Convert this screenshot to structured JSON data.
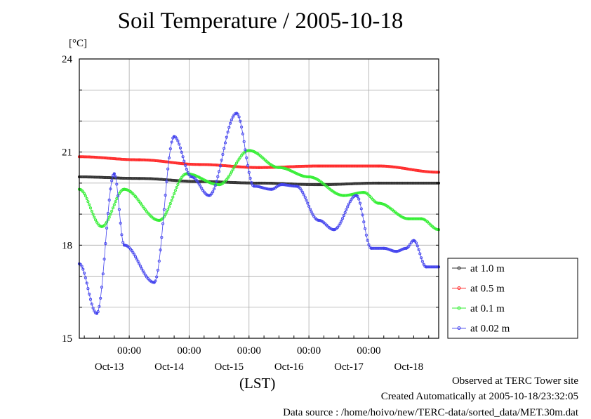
{
  "title": "Soil Temperature / 2005-10-18",
  "unit": "[°C]",
  "xlabel": "(LST)",
  "footer": {
    "observed": "Observed at TERC Tower site",
    "created": "Created Automatically at 2005-10-18/23:32:05",
    "source": "Data source : /home/hoivo/new/TERC-data/sorted_data/MET.30m.dat"
  },
  "chart_data": {
    "type": "line",
    "title": "Soil Temperature / 2005-10-18",
    "ylabel": "[°C]",
    "xlabel": "(LST)",
    "ylim": [
      15,
      24
    ],
    "xlim": [
      0,
      144
    ],
    "yticks": [
      15,
      18,
      21,
      24
    ],
    "xtick_positions": [
      20,
      44,
      68,
      92,
      116
    ],
    "xtick_labels": [
      "00:00",
      "00:00",
      "00:00",
      "00:00",
      "00:00"
    ],
    "date_positions": [
      12,
      36,
      60,
      84,
      108,
      132
    ],
    "date_labels": [
      "Oct-13",
      "Oct-14",
      "Oct-15",
      "Oct-16",
      "Oct-17",
      "Oct-18"
    ],
    "grid": true,
    "legend_position": "right",
    "series": [
      {
        "name": "at 1.0 m",
        "color": "#333333",
        "x": [
          0,
          24,
          48,
          72,
          96,
          120,
          144
        ],
        "y": [
          20.2,
          20.15,
          20.05,
          20.0,
          19.95,
          20.0,
          20.0
        ]
      },
      {
        "name": "at 0.5 m",
        "color": "#ff2a2a",
        "x": [
          0,
          24,
          48,
          72,
          96,
          120,
          144
        ],
        "y": [
          20.85,
          20.75,
          20.6,
          20.5,
          20.55,
          20.55,
          20.35
        ]
      },
      {
        "name": "at 0.1 m",
        "color": "#33ee33",
        "x": [
          0,
          9,
          18,
          32,
          43,
          56,
          68,
          80,
          92,
          106,
          114,
          120,
          132,
          137,
          144
        ],
        "y": [
          19.8,
          18.6,
          19.8,
          18.8,
          20.3,
          19.95,
          21.05,
          20.5,
          20.2,
          19.6,
          19.7,
          19.35,
          18.85,
          18.85,
          18.5
        ]
      },
      {
        "name": "at 0.02 m",
        "color": "#4444ee",
        "x": [
          0,
          7,
          14,
          18,
          30,
          38,
          45,
          52,
          63,
          70,
          77,
          81,
          87,
          96,
          102,
          111,
          117,
          122,
          127,
          131,
          134,
          139,
          144
        ],
        "y": [
          17.4,
          15.8,
          20.3,
          18.0,
          16.8,
          21.5,
          20.2,
          19.6,
          22.25,
          19.9,
          19.8,
          19.95,
          19.9,
          18.8,
          18.5,
          19.6,
          17.9,
          17.9,
          17.8,
          17.9,
          18.15,
          17.3,
          17.3
        ]
      }
    ]
  }
}
